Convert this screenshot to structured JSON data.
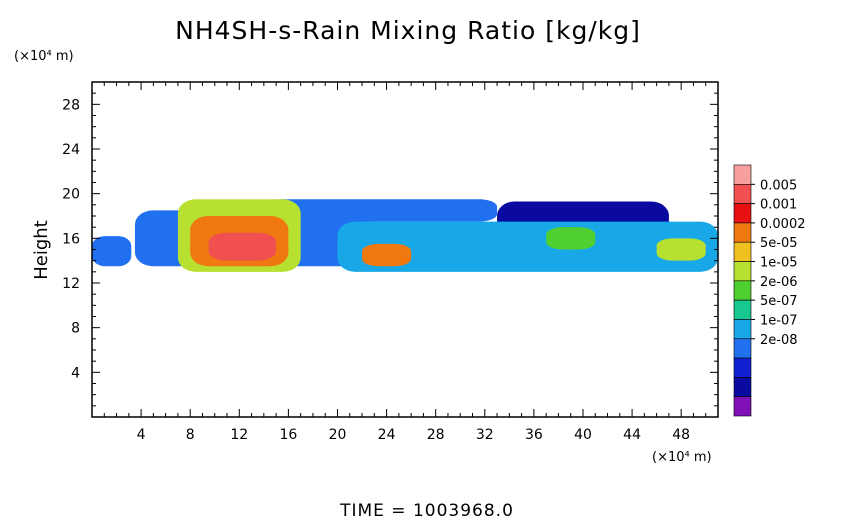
{
  "chart_data": {
    "type": "heatmap",
    "title": "NH4SH-s-Rain Mixing Ratio [kg/kg]",
    "xlabel": "",
    "ylabel": "Height",
    "x_unit": "(×10⁴ m)",
    "y_unit": "(×10⁴ m)",
    "xlim": [
      0,
      51
    ],
    "ylim": [
      0,
      30
    ],
    "x_ticks": [
      4,
      8,
      12,
      16,
      20,
      24,
      28,
      32,
      36,
      40,
      44,
      48
    ],
    "y_ticks": [
      4,
      8,
      12,
      16,
      20,
      24,
      28
    ],
    "time_label": "TIME = 1003968.0",
    "colorbar": {
      "levels": [
        "0.005",
        "0.001",
        "0.0002",
        "5e-05",
        "1e-05",
        "2e-06",
        "5e-07",
        "1e-07",
        "2e-08"
      ],
      "colors": [
        "#f8a0a0",
        "#f05050",
        "#e81010",
        "#f07810",
        "#f0c020",
        "#b8e030",
        "#50d030",
        "#18c890",
        "#18a8e8",
        "#2070f0",
        "#1020d0",
        "#0a0aa0",
        "#8010b8"
      ]
    },
    "regions": [
      {
        "x": [
          0,
          3.2
        ],
        "y": [
          13.5,
          16.2
        ],
        "level": 9
      },
      {
        "x": [
          3.5,
          23
        ],
        "y": [
          13.5,
          18.5
        ],
        "level": 9
      },
      {
        "x": [
          14,
          33
        ],
        "y": [
          17.5,
          19.5
        ],
        "level": 9
      },
      {
        "x": [
          33,
          47
        ],
        "y": [
          15,
          19.3
        ],
        "level": 11
      },
      {
        "x": [
          20,
          51
        ],
        "y": [
          13,
          17.5
        ],
        "level": 8
      },
      {
        "x": [
          7,
          17
        ],
        "y": [
          13,
          19.5
        ],
        "level": 5
      },
      {
        "x": [
          8,
          16
        ],
        "y": [
          13.5,
          18
        ],
        "level": 3
      },
      {
        "x": [
          9.5,
          15
        ],
        "y": [
          14,
          16.5
        ],
        "level": 1
      },
      {
        "x": [
          22,
          26
        ],
        "y": [
          13.5,
          15.5
        ],
        "level": 3
      },
      {
        "x": [
          37,
          41
        ],
        "y": [
          15,
          17
        ],
        "level": 6
      },
      {
        "x": [
          46,
          50
        ],
        "y": [
          14,
          16
        ],
        "level": 5
      }
    ]
  }
}
